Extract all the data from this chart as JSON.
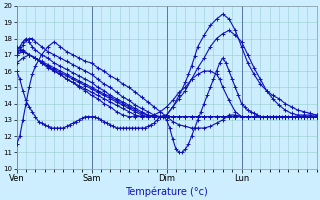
{
  "xlabel": "Température (°c)",
  "ylim": [
    10,
    20
  ],
  "yticks": [
    10,
    11,
    12,
    13,
    14,
    15,
    16,
    17,
    18,
    19,
    20
  ],
  "background_color": "#cceeff",
  "grid_color": "#99cccc",
  "line_color": "#1111bb",
  "marker": "+",
  "markersize": 3,
  "linewidth": 0.8,
  "day_labels": [
    "Ven",
    "Sam",
    "Dim",
    "Lun"
  ],
  "day_positions": [
    0,
    24,
    48,
    72
  ],
  "series": [
    {
      "x": [
        0,
        1,
        2,
        3,
        4,
        5,
        6,
        8,
        10,
        12,
        14,
        16,
        18,
        20,
        22,
        24,
        26,
        28,
        30,
        32,
        34,
        36,
        38,
        40,
        42,
        44,
        46,
        48,
        50,
        52,
        54,
        56,
        58,
        60,
        62,
        64,
        66,
        68,
        70,
        72,
        74,
        76,
        78,
        80,
        82,
        84,
        86,
        88,
        90,
        92,
        94,
        96
      ],
      "y": [
        11.5,
        12.0,
        13.0,
        14.0,
        15.0,
        15.8,
        16.3,
        17.0,
        17.5,
        17.8,
        17.5,
        17.2,
        17.0,
        16.8,
        16.6,
        16.5,
        16.2,
        16.0,
        15.7,
        15.5,
        15.2,
        15.0,
        14.7,
        14.4,
        14.1,
        13.8,
        13.5,
        13.2,
        12.9,
        12.7,
        12.6,
        12.5,
        12.5,
        12.5,
        12.6,
        12.8,
        13.0,
        13.3,
        13.3,
        13.2,
        13.2,
        13.2,
        13.2,
        13.2,
        13.2,
        13.2,
        13.2,
        13.2,
        13.2,
        13.2,
        13.2,
        13.2
      ]
    },
    {
      "x": [
        0,
        1,
        2,
        3,
        4,
        5,
        6,
        8,
        10,
        12,
        14,
        16,
        18,
        20,
        22,
        24,
        26,
        28,
        30,
        32,
        34,
        36,
        38,
        40,
        42,
        44,
        46,
        48,
        50,
        52,
        54,
        55,
        56,
        57,
        58,
        60,
        62,
        64,
        66,
        68,
        70,
        72,
        74,
        76,
        78,
        80,
        82,
        84,
        86,
        88,
        90,
        92,
        94,
        96
      ],
      "y": [
        17.0,
        17.3,
        17.6,
        17.9,
        18.0,
        18.0,
        17.8,
        17.5,
        17.2,
        17.0,
        16.8,
        16.6,
        16.4,
        16.2,
        16.0,
        15.8,
        15.5,
        15.2,
        15.0,
        14.7,
        14.4,
        14.2,
        13.9,
        13.7,
        13.5,
        13.3,
        13.2,
        13.3,
        13.8,
        14.5,
        15.3,
        15.8,
        16.3,
        16.9,
        17.5,
        18.2,
        18.8,
        19.2,
        19.5,
        19.2,
        18.5,
        17.5,
        16.5,
        15.8,
        15.2,
        14.8,
        14.5,
        14.3,
        14.0,
        13.8,
        13.6,
        13.5,
        13.4,
        13.3
      ]
    },
    {
      "x": [
        0,
        1,
        2,
        3,
        4,
        5,
        6,
        8,
        10,
        12,
        14,
        16,
        18,
        20,
        22,
        24,
        26,
        28,
        30,
        32,
        34,
        36,
        38,
        40,
        42,
        44,
        46,
        48,
        50,
        52,
        54,
        56,
        58,
        60,
        62,
        64,
        66,
        68,
        70,
        72,
        74,
        76,
        78,
        80,
        82,
        84,
        86,
        88,
        90,
        92,
        94,
        96
      ],
      "y": [
        17.2,
        17.5,
        17.8,
        18.0,
        17.8,
        17.5,
        17.3,
        17.0,
        16.8,
        16.5,
        16.3,
        16.1,
        15.9,
        15.7,
        15.5,
        15.3,
        15.0,
        14.8,
        14.5,
        14.3,
        14.1,
        13.9,
        13.7,
        13.5,
        13.3,
        13.2,
        13.2,
        13.3,
        13.8,
        14.3,
        14.8,
        15.5,
        16.2,
        16.8,
        17.5,
        18.0,
        18.3,
        18.5,
        18.2,
        17.8,
        17.0,
        16.2,
        15.5,
        14.8,
        14.3,
        13.9,
        13.6,
        13.4,
        13.3,
        13.3,
        13.3,
        13.3
      ]
    },
    {
      "x": [
        0,
        2,
        4,
        6,
        8,
        10,
        12,
        14,
        16,
        18,
        20,
        22,
        24,
        26,
        28,
        30,
        32,
        34,
        36,
        38,
        40,
        42,
        44,
        46,
        48,
        50,
        52,
        54,
        56,
        58,
        60,
        62,
        64,
        66,
        68,
        70,
        72,
        74,
        76,
        78,
        80,
        82,
        84,
        86,
        88,
        90,
        92,
        94,
        96
      ],
      "y": [
        17.0,
        17.2,
        17.0,
        16.8,
        16.5,
        16.3,
        16.1,
        15.9,
        15.7,
        15.5,
        15.3,
        15.1,
        14.9,
        14.7,
        14.5,
        14.3,
        14.1,
        13.9,
        13.7,
        13.5,
        13.3,
        13.2,
        13.2,
        13.2,
        13.2,
        13.2,
        13.2,
        13.2,
        13.2,
        13.2,
        13.2,
        13.2,
        13.2,
        13.2,
        13.2,
        13.2,
        13.2,
        13.2,
        13.2,
        13.2,
        13.2,
        13.2,
        13.2,
        13.2,
        13.2,
        13.2,
        13.2,
        13.2,
        13.2
      ]
    },
    {
      "x": [
        0,
        2,
        4,
        6,
        8,
        10,
        12,
        14,
        16,
        18,
        20,
        22,
        24,
        26,
        28,
        30,
        32,
        34,
        36,
        38,
        40,
        42,
        44,
        46,
        48,
        50,
        52,
        54,
        56,
        58,
        60,
        62,
        64,
        66,
        68,
        70,
        72,
        74,
        76,
        78,
        80,
        82,
        84,
        86,
        88,
        90,
        92,
        94,
        96
      ],
      "y": [
        17.3,
        17.2,
        17.0,
        16.8,
        16.6,
        16.4,
        16.2,
        16.0,
        15.8,
        15.6,
        15.4,
        15.2,
        15.0,
        14.8,
        14.6,
        14.4,
        14.2,
        14.0,
        13.8,
        13.6,
        13.4,
        13.3,
        13.2,
        13.2,
        13.2,
        13.2,
        13.2,
        13.2,
        13.2,
        13.2,
        13.2,
        13.2,
        13.2,
        13.2,
        13.2,
        13.2,
        13.2,
        13.2,
        13.2,
        13.2,
        13.2,
        13.2,
        13.2,
        13.2,
        13.2,
        13.2,
        13.2,
        13.2,
        13.2
      ]
    },
    {
      "x": [
        0,
        2,
        4,
        6,
        8,
        10,
        12,
        14,
        16,
        18,
        20,
        22,
        24,
        26,
        28,
        30,
        32,
        34,
        36,
        38,
        40,
        42,
        44,
        46,
        48,
        50,
        52,
        54,
        56,
        58,
        60,
        62,
        64,
        66,
        68,
        70,
        72,
        74,
        76,
        78,
        80,
        82,
        84,
        86,
        88,
        90,
        92,
        94,
        96
      ],
      "y": [
        16.5,
        16.8,
        17.0,
        16.8,
        16.5,
        16.2,
        16.0,
        15.8,
        15.5,
        15.3,
        15.1,
        14.9,
        14.7,
        14.5,
        14.3,
        14.1,
        13.9,
        13.7,
        13.5,
        13.3,
        13.2,
        13.2,
        13.2,
        13.2,
        13.2,
        13.2,
        13.2,
        13.2,
        13.2,
        13.2,
        13.2,
        13.2,
        13.2,
        13.2,
        13.2,
        13.2,
        13.2,
        13.2,
        13.2,
        13.2,
        13.2,
        13.2,
        13.2,
        13.2,
        13.2,
        13.2,
        13.2,
        13.2,
        13.2
      ]
    },
    {
      "x": [
        0,
        2,
        4,
        6,
        8,
        10,
        12,
        14,
        16,
        18,
        20,
        22,
        24,
        26,
        28,
        30,
        32,
        34,
        36,
        38,
        40,
        42,
        44,
        46,
        48,
        50,
        52,
        54,
        56,
        58,
        60,
        62,
        64,
        65,
        66,
        68,
        70,
        72,
        74,
        76,
        78,
        80,
        82,
        84,
        86,
        88,
        90,
        92,
        94,
        96
      ],
      "y": [
        17.5,
        17.3,
        17.0,
        16.8,
        16.5,
        16.3,
        16.0,
        15.8,
        15.5,
        15.3,
        15.0,
        14.8,
        14.5,
        14.3,
        14.0,
        13.8,
        13.5,
        13.3,
        13.2,
        13.2,
        13.2,
        13.2,
        13.3,
        13.5,
        13.8,
        14.2,
        14.7,
        15.0,
        15.5,
        15.8,
        16.0,
        16.0,
        15.8,
        15.5,
        15.0,
        14.2,
        13.5,
        13.2,
        13.2,
        13.2,
        13.2,
        13.2,
        13.2,
        13.2,
        13.2,
        13.2,
        13.2,
        13.2,
        13.2,
        13.2
      ]
    },
    {
      "x": [
        0,
        1,
        2,
        3,
        4,
        5,
        6,
        7,
        8,
        9,
        10,
        11,
        12,
        13,
        14,
        15,
        16,
        17,
        18,
        19,
        20,
        21,
        22,
        23,
        24,
        25,
        26,
        27,
        28,
        29,
        30,
        31,
        32,
        33,
        34,
        35,
        36,
        37,
        38,
        39,
        40,
        41,
        42,
        43,
        44,
        45,
        46,
        47,
        48,
        49,
        50,
        51,
        52,
        53,
        54,
        55,
        56,
        57,
        58,
        59,
        60,
        61,
        62,
        63,
        64,
        65,
        66,
        67,
        68,
        69,
        70,
        71,
        72,
        73,
        74,
        75,
        76,
        77,
        78,
        79,
        80,
        81,
        82,
        83,
        84,
        85,
        86,
        87,
        88,
        89,
        90,
        91,
        92,
        93,
        94,
        95,
        96
      ],
      "y": [
        16.0,
        15.5,
        14.8,
        14.2,
        13.8,
        13.5,
        13.2,
        12.9,
        12.8,
        12.7,
        12.6,
        12.5,
        12.5,
        12.5,
        12.5,
        12.5,
        12.6,
        12.7,
        12.8,
        12.9,
        13.0,
        13.1,
        13.2,
        13.2,
        13.2,
        13.2,
        13.1,
        13.0,
        12.9,
        12.8,
        12.7,
        12.6,
        12.5,
        12.5,
        12.5,
        12.5,
        12.5,
        12.5,
        12.5,
        12.5,
        12.5,
        12.5,
        12.6,
        12.7,
        12.8,
        13.0,
        13.2,
        13.2,
        13.0,
        12.5,
        11.8,
        11.2,
        11.0,
        11.0,
        11.2,
        11.5,
        12.0,
        12.5,
        13.0,
        13.5,
        14.0,
        14.5,
        15.0,
        15.5,
        16.0,
        16.5,
        16.8,
        16.5,
        16.0,
        15.5,
        15.0,
        14.5,
        14.0,
        13.8,
        13.6,
        13.5,
        13.4,
        13.3,
        13.2,
        13.2,
        13.2,
        13.2,
        13.2,
        13.2,
        13.2,
        13.2,
        13.2,
        13.2,
        13.2,
        13.2,
        13.2,
        13.2,
        13.2,
        13.2,
        13.2,
        13.2,
        13.2
      ]
    }
  ]
}
